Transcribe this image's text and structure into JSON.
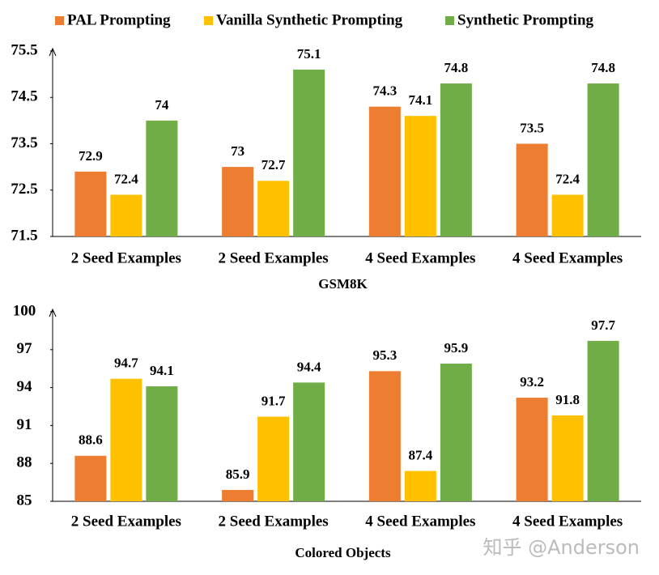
{
  "chart_data": [
    {
      "type": "bar",
      "x_label": "GSM8K",
      "categories": [
        "2 Seed Examples",
        "2 Seed Examples",
        "4 Seed Examples",
        "4 Seed Examples"
      ],
      "series": [
        {
          "name": "PAL Prompting",
          "color": "#ed7d31",
          "values": [
            72.9,
            73,
            74.3,
            73.5
          ]
        },
        {
          "name": "Vanilla Synthetic Prompting",
          "color": "#ffc000",
          "values": [
            72.4,
            72.7,
            74.1,
            72.4
          ]
        },
        {
          "name": "Synthetic Prompting",
          "color": "#70ad47",
          "values": [
            74,
            75.1,
            74.8,
            74.8
          ]
        }
      ],
      "ylim": [
        71.5,
        75.5
      ],
      "yticks": [
        71.5,
        72.5,
        73.5,
        74.5,
        75.5
      ],
      "grid": false
    },
    {
      "type": "bar",
      "x_label": "Colored Objects",
      "categories": [
        "2 Seed Examples",
        "2 Seed Examples",
        "4 Seed Examples",
        "4 Seed Examples"
      ],
      "series": [
        {
          "color": "#ed7d31",
          "values": [
            88.6,
            85.9,
            95.3,
            93.2
          ]
        },
        {
          "color": "#ffc000",
          "values": [
            94.7,
            91.7,
            87.4,
            91.8
          ]
        },
        {
          "color": "#70ad47",
          "values": [
            94.1,
            94.4,
            95.9,
            97.7
          ]
        }
      ],
      "ylim": [
        85,
        100
      ],
      "yticks": [
        85,
        88,
        91,
        94,
        97,
        100
      ],
      "grid": false
    }
  ],
  "watermark": "知乎 @Anderson"
}
